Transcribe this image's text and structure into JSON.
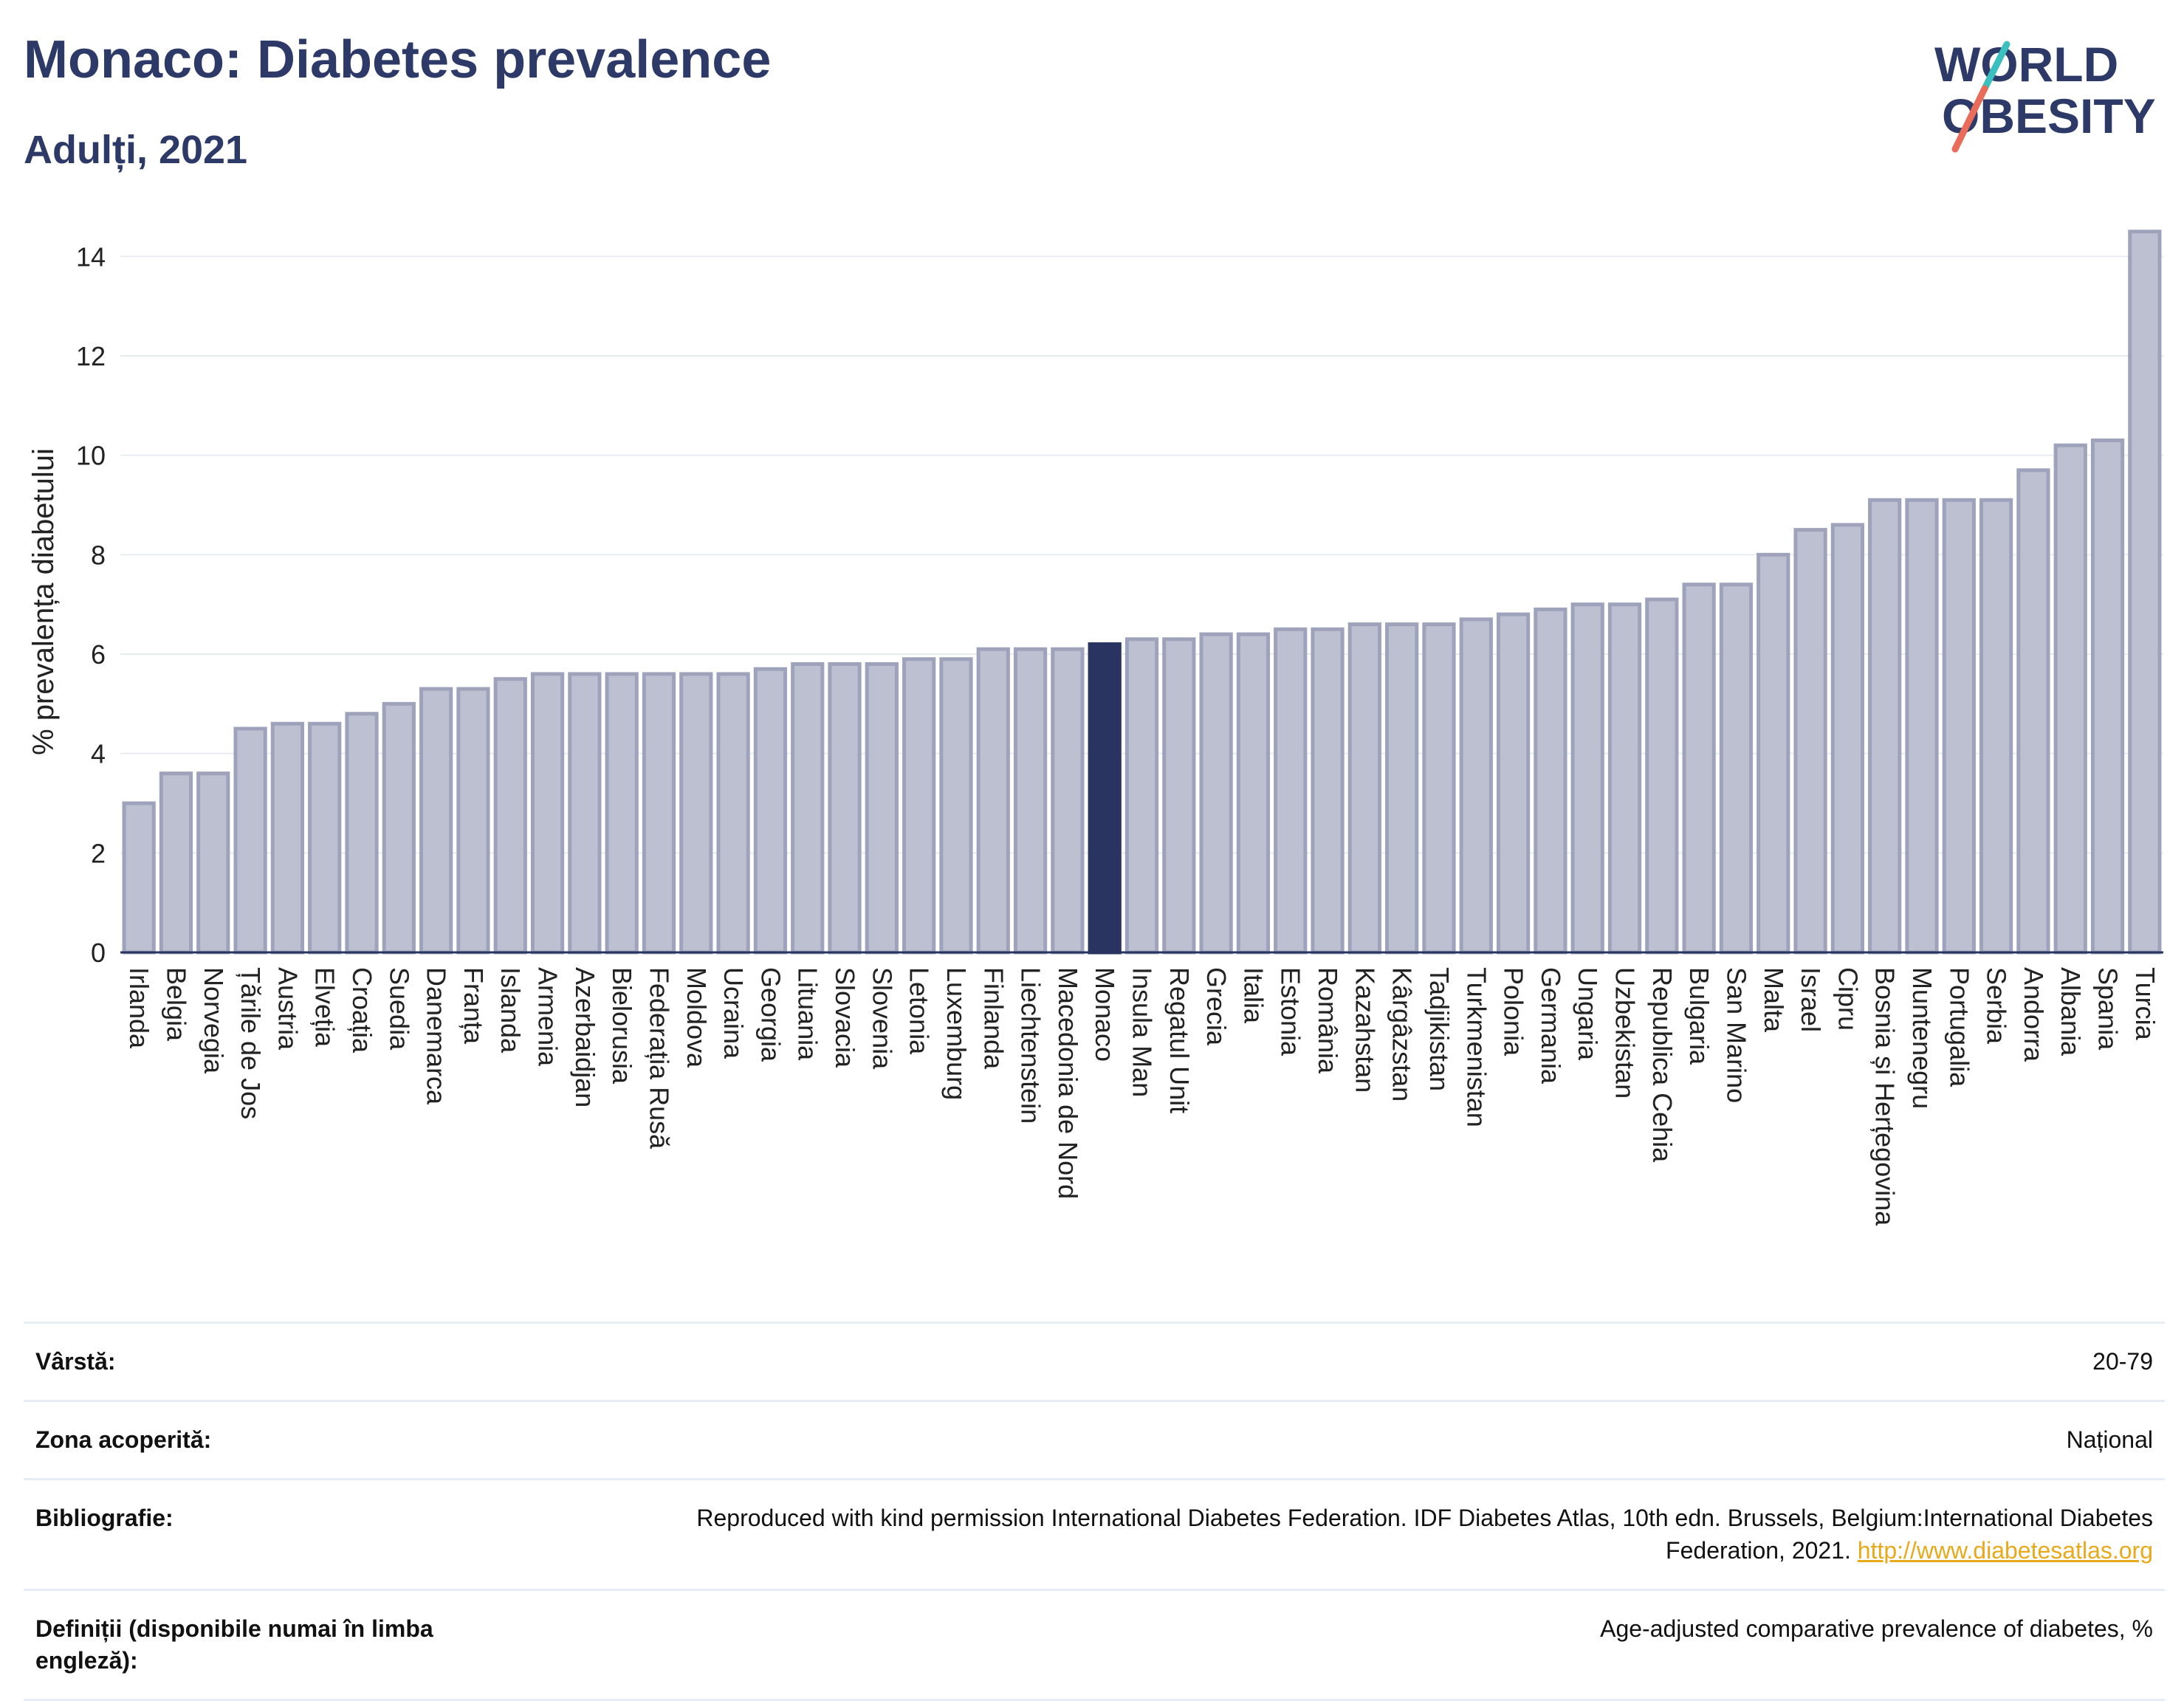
{
  "header": {
    "title": "Monaco: Diabetes prevalence",
    "subtitle": "Adulți, 2021",
    "logo_line1": "WORLD",
    "logo_line2": "OBESITY"
  },
  "colors": {
    "bar": "#bcc0d0",
    "bar_stroke": "#9ea3bb",
    "highlight": "#2a3461",
    "logo_slash_teal": "#3bbfbf",
    "logo_slash_red": "#e96b5a",
    "link": "#e8a91b"
  },
  "chart_data": {
    "type": "bar",
    "title": "Monaco: Diabetes prevalence",
    "subtitle": "Adulți, 2021",
    "xlabel": "",
    "ylabel": "% prevalența diabetului",
    "ylim": [
      0,
      15
    ],
    "yticks": [
      0,
      2,
      4,
      6,
      8,
      10,
      12,
      14
    ],
    "grid": true,
    "highlight": "Monaco",
    "categories": [
      "Irlanda",
      "Belgia",
      "Norvegia",
      "Țările de Jos",
      "Austria",
      "Elveția",
      "Croația",
      "Suedia",
      "Danemarca",
      "Franța",
      "Islanda",
      "Armenia",
      "Azerbaidjan",
      "Bielorusia",
      "Federația Rusă",
      "Moldova",
      "Ucraina",
      "Georgia",
      "Lituania",
      "Slovacia",
      "Slovenia",
      "Letonia",
      "Luxemburg",
      "Finlanda",
      "Liechtenstein",
      "Macedonia de Nord",
      "Monaco",
      "Insula Man",
      "Regatul Unit",
      "Grecia",
      "Italia",
      "Estonia",
      "România",
      "Kazahstan",
      "Kârgâzstan",
      "Tadjikistan",
      "Turkmenistan",
      "Polonia",
      "Germania",
      "Ungaria",
      "Uzbekistan",
      "Republica Cehia",
      "Bulgaria",
      "San Marino",
      "Malta",
      "Israel",
      "Cipru",
      "Bosnia și Herțegovina",
      "Muntenegru",
      "Portugalia",
      "Serbia",
      "Andorra",
      "Albania",
      "Spania",
      "Turcia"
    ],
    "values": [
      3.0,
      3.6,
      3.6,
      4.5,
      4.6,
      4.6,
      4.8,
      5.0,
      5.3,
      5.3,
      5.5,
      5.6,
      5.6,
      5.6,
      5.6,
      5.6,
      5.6,
      5.7,
      5.8,
      5.8,
      5.8,
      5.9,
      5.9,
      6.1,
      6.1,
      6.1,
      6.2,
      6.3,
      6.3,
      6.4,
      6.4,
      6.5,
      6.5,
      6.6,
      6.6,
      6.6,
      6.7,
      6.8,
      6.9,
      7.0,
      7.0,
      7.1,
      7.4,
      7.4,
      8.0,
      8.5,
      8.6,
      9.1,
      9.1,
      9.1,
      9.1,
      9.7,
      10.2,
      10.3,
      14.5
    ]
  },
  "meta": [
    {
      "label": "Vârstă:",
      "value": "20-79"
    },
    {
      "label": "Zona acoperită:",
      "value": "Național"
    },
    {
      "label": "Bibliografie:",
      "value": "Reproduced with kind permission International Diabetes Federation.  IDF Diabetes Atlas, 10th edn. Brussels, Belgium:International Diabetes Federation, 2021.",
      "link": "http://www.diabetesatlas.org"
    },
    {
      "label": "Definiții (disponibile numai în limba engleză):",
      "value": "Age-adjusted comparative prevalence of diabetes, %"
    }
  ]
}
